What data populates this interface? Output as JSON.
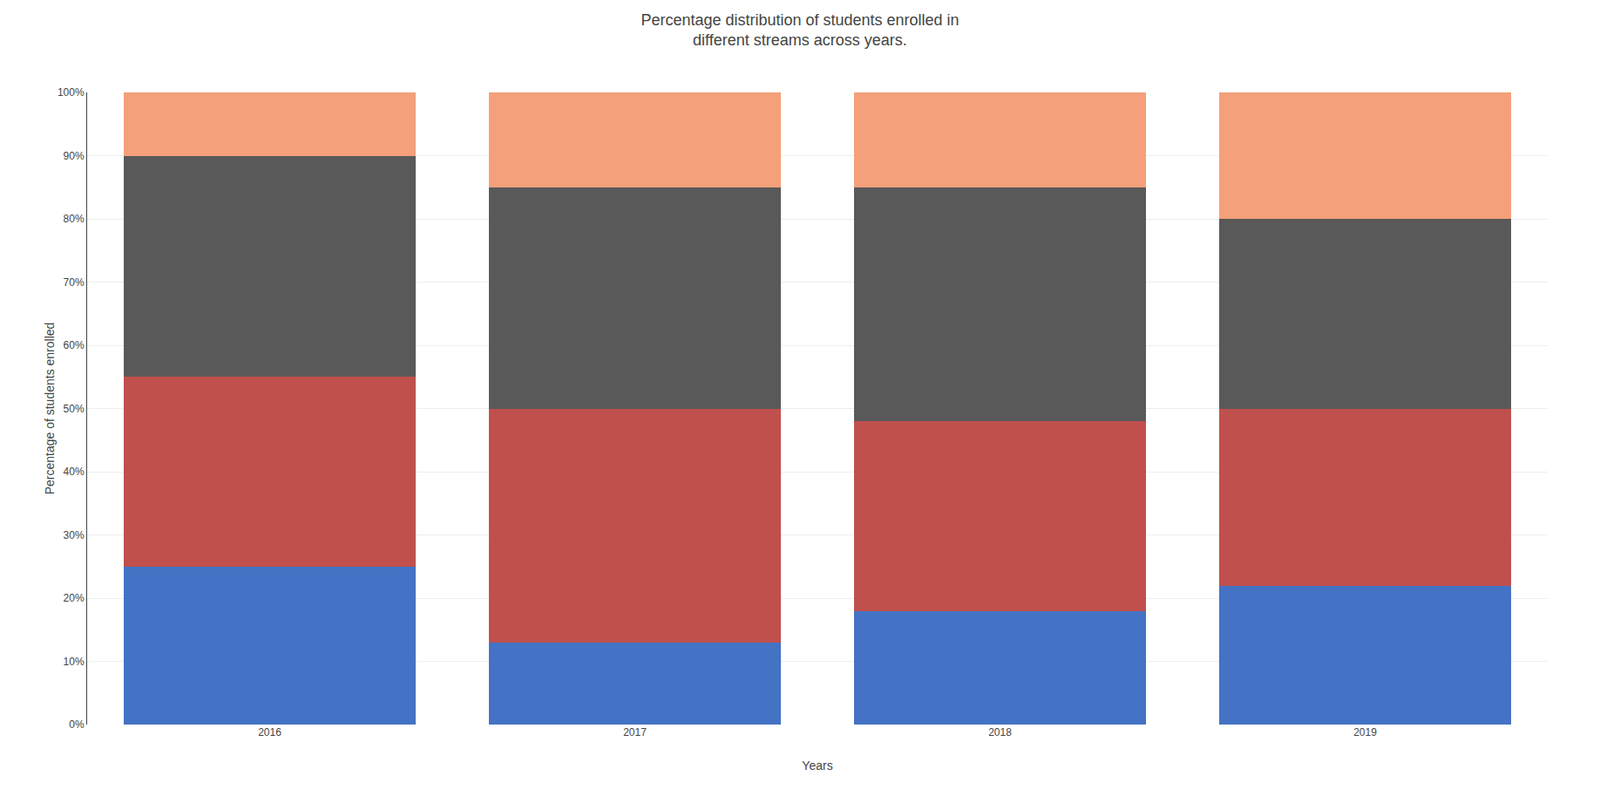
{
  "chart_data": {
    "type": "bar",
    "stacked": true,
    "title": "Percentage distribution of students enrolled in\ndifferent streams across years.",
    "xlabel": "Years",
    "ylabel": "Percentage of students enrolled",
    "categories": [
      "2016",
      "2017",
      "2018",
      "2019"
    ],
    "series": [
      {
        "color": "#4472C4",
        "values": [
          25,
          13,
          18,
          22
        ]
      },
      {
        "color": "#C0504D",
        "values": [
          30,
          37,
          30,
          28
        ]
      },
      {
        "color": "#595959",
        "values": [
          35,
          35,
          37,
          30
        ]
      },
      {
        "color": "#F4A07A",
        "values": [
          10,
          15,
          15,
          20
        ]
      }
    ],
    "ylim": [
      0,
      100
    ],
    "yticks": [
      {
        "value": 0,
        "label": "0%"
      },
      {
        "value": 10,
        "label": "10%"
      },
      {
        "value": 20,
        "label": "20%"
      },
      {
        "value": 30,
        "label": "30%"
      },
      {
        "value": 40,
        "label": "40%"
      },
      {
        "value": 50,
        "label": "50%"
      },
      {
        "value": 60,
        "label": "60%"
      },
      {
        "value": 70,
        "label": "70%"
      },
      {
        "value": 80,
        "label": "80%"
      },
      {
        "value": 90,
        "label": "90%"
      },
      {
        "value": 100,
        "label": "100%"
      }
    ],
    "grid": true
  }
}
